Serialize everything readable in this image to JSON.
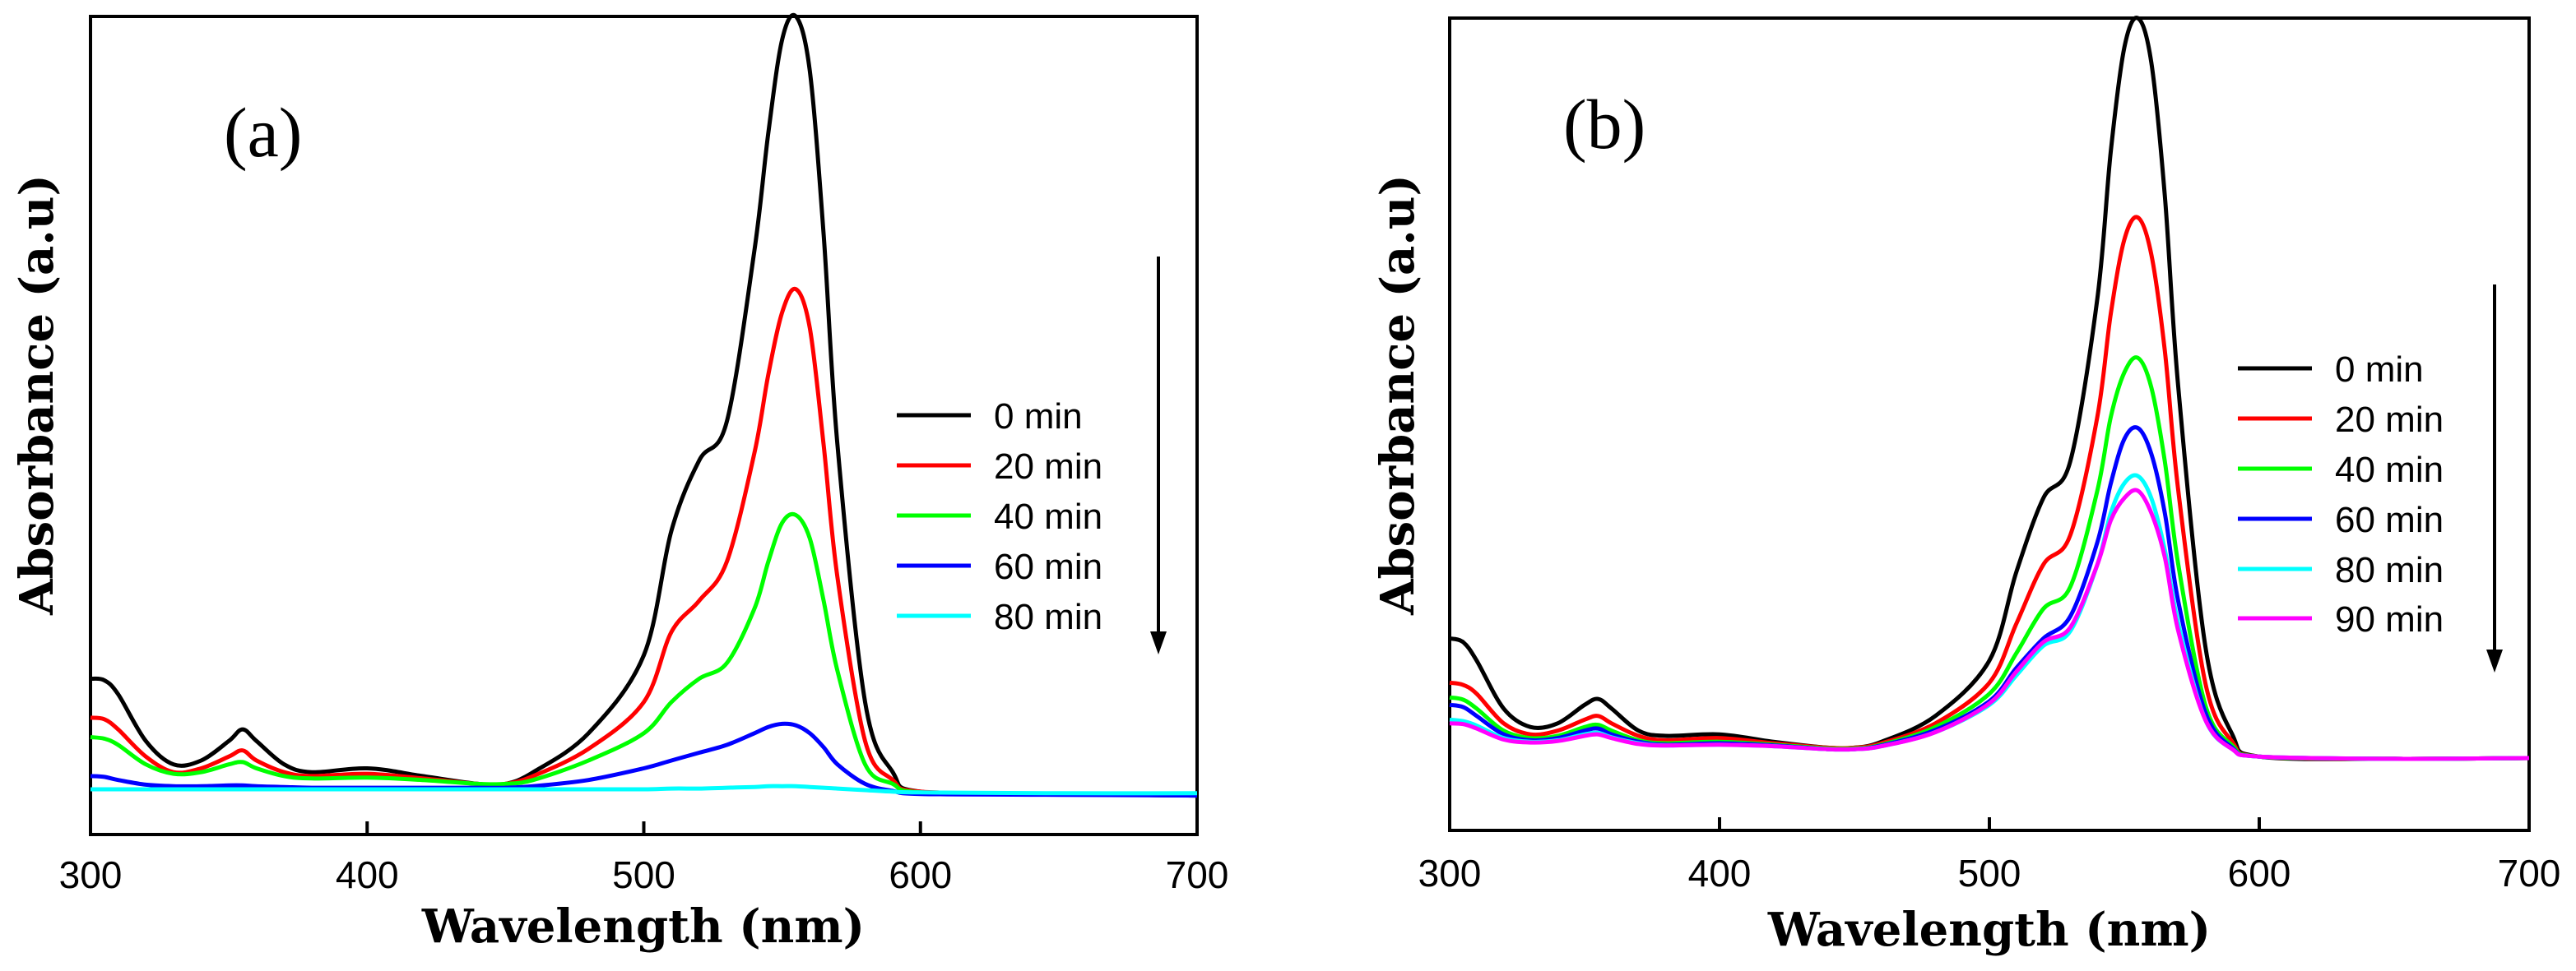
{
  "chart_data": [
    {
      "type": "line",
      "panel_label": "(a)",
      "xlabel": "Wavelength (nm)",
      "ylabel": "Absorbance (a.u)",
      "xlim": [
        300,
        700
      ],
      "ylim": [
        -0.05,
        1.0
      ],
      "xticks": [
        "300",
        "400",
        "500",
        "600",
        "700"
      ],
      "x": [
        300,
        305,
        310,
        320,
        330,
        340,
        350,
        355,
        360,
        370,
        380,
        400,
        420,
        440,
        450,
        460,
        480,
        500,
        510,
        520,
        530,
        540,
        545,
        550,
        555,
        560,
        565,
        570,
        580,
        590,
        600,
        650,
        700
      ],
      "series": [
        {
          "name": "0 min",
          "color": "#000000",
          "values": [
            0.15,
            0.148,
            0.13,
            0.07,
            0.04,
            0.045,
            0.07,
            0.085,
            0.07,
            0.04,
            0.03,
            0.035,
            0.025,
            0.015,
            0.015,
            0.03,
            0.08,
            0.18,
            0.34,
            0.43,
            0.48,
            0.7,
            0.85,
            0.97,
            1.0,
            0.93,
            0.72,
            0.45,
            0.12,
            0.03,
            0.005,
            0.002,
            0.0
          ]
        },
        {
          "name": "20 min",
          "color": "#ff0000",
          "values": [
            0.1,
            0.098,
            0.085,
            0.05,
            0.03,
            0.035,
            0.05,
            0.058,
            0.045,
            0.03,
            0.025,
            0.028,
            0.022,
            0.015,
            0.015,
            0.025,
            0.06,
            0.12,
            0.21,
            0.25,
            0.3,
            0.44,
            0.54,
            0.62,
            0.65,
            0.6,
            0.45,
            0.28,
            0.07,
            0.02,
            0.005,
            0.002,
            0.0
          ]
        },
        {
          "name": "40 min",
          "color": "#00ff00",
          "values": [
            0.075,
            0.073,
            0.065,
            0.04,
            0.028,
            0.03,
            0.04,
            0.043,
            0.035,
            0.025,
            0.022,
            0.023,
            0.02,
            0.015,
            0.015,
            0.02,
            0.045,
            0.08,
            0.12,
            0.15,
            0.17,
            0.24,
            0.3,
            0.35,
            0.36,
            0.33,
            0.25,
            0.16,
            0.04,
            0.015,
            0.004,
            0.002,
            0.0
          ]
        },
        {
          "name": "60 min",
          "color": "#0000ff",
          "values": [
            0.025,
            0.024,
            0.02,
            0.014,
            0.012,
            0.012,
            0.013,
            0.013,
            0.012,
            0.011,
            0.01,
            0.01,
            0.01,
            0.01,
            0.01,
            0.012,
            0.02,
            0.035,
            0.045,
            0.055,
            0.065,
            0.08,
            0.088,
            0.092,
            0.09,
            0.08,
            0.062,
            0.04,
            0.015,
            0.006,
            0.002,
            0.001,
            0.0
          ]
        },
        {
          "name": "80 min",
          "color": "#00ffff",
          "values": [
            0.008,
            0.008,
            0.008,
            0.008,
            0.008,
            0.008,
            0.008,
            0.008,
            0.008,
            0.008,
            0.008,
            0.008,
            0.008,
            0.008,
            0.008,
            0.008,
            0.008,
            0.008,
            0.009,
            0.009,
            0.01,
            0.011,
            0.012,
            0.012,
            0.012,
            0.011,
            0.01,
            0.009,
            0.007,
            0.005,
            0.004,
            0.003,
            0.003
          ]
        }
      ]
    },
    {
      "type": "line",
      "panel_label": "(b)",
      "xlabel": "Wavelength (nm)",
      "ylabel": "Absorbance (a.u)",
      "xlim": [
        300,
        700
      ],
      "ylim": [
        -0.1,
        1.0
      ],
      "xticks": [
        "300",
        "400",
        "500",
        "600",
        "700"
      ],
      "x": [
        300,
        305,
        310,
        320,
        330,
        340,
        350,
        355,
        360,
        370,
        380,
        400,
        420,
        440,
        450,
        460,
        480,
        500,
        510,
        520,
        530,
        540,
        545,
        550,
        555,
        560,
        565,
        570,
        580,
        590,
        600,
        650,
        700
      ],
      "series": [
        {
          "name": "0 min",
          "color": "#000000",
          "values": [
            0.16,
            0.155,
            0.13,
            0.065,
            0.04,
            0.045,
            0.07,
            0.078,
            0.065,
            0.035,
            0.028,
            0.03,
            0.02,
            0.012,
            0.012,
            0.02,
            0.055,
            0.13,
            0.25,
            0.35,
            0.4,
            0.62,
            0.82,
            0.96,
            1.0,
            0.94,
            0.76,
            0.5,
            0.15,
            0.03,
            0.0,
            -0.003,
            -0.002
          ]
        },
        {
          "name": "20 min",
          "color": "#ff0000",
          "values": [
            0.1,
            0.097,
            0.085,
            0.045,
            0.03,
            0.035,
            0.05,
            0.055,
            0.045,
            0.028,
            0.022,
            0.025,
            0.018,
            0.012,
            0.012,
            0.018,
            0.045,
            0.1,
            0.18,
            0.26,
            0.3,
            0.46,
            0.6,
            0.7,
            0.73,
            0.68,
            0.55,
            0.36,
            0.1,
            0.02,
            0.0,
            -0.003,
            -0.002
          ]
        },
        {
          "name": "40 min",
          "color": "#00ff00",
          "values": [
            0.08,
            0.077,
            0.065,
            0.035,
            0.025,
            0.028,
            0.04,
            0.043,
            0.035,
            0.022,
            0.018,
            0.02,
            0.016,
            0.011,
            0.011,
            0.016,
            0.04,
            0.085,
            0.14,
            0.2,
            0.23,
            0.36,
            0.46,
            0.52,
            0.54,
            0.5,
            0.4,
            0.26,
            0.07,
            0.015,
            0.0,
            -0.003,
            -0.002
          ]
        },
        {
          "name": "60 min",
          "color": "#0000ff",
          "values": [
            0.07,
            0.067,
            0.055,
            0.03,
            0.022,
            0.025,
            0.035,
            0.038,
            0.03,
            0.02,
            0.016,
            0.018,
            0.015,
            0.01,
            0.01,
            0.015,
            0.036,
            0.075,
            0.12,
            0.16,
            0.19,
            0.29,
            0.37,
            0.43,
            0.445,
            0.41,
            0.33,
            0.21,
            0.06,
            0.012,
            0.0,
            -0.003,
            -0.002
          ]
        },
        {
          "name": "80 min",
          "color": "#00ffff",
          "values": [
            0.05,
            0.048,
            0.042,
            0.025,
            0.02,
            0.022,
            0.03,
            0.032,
            0.026,
            0.018,
            0.015,
            0.016,
            0.014,
            0.01,
            0.01,
            0.014,
            0.033,
            0.07,
            0.11,
            0.15,
            0.17,
            0.26,
            0.33,
            0.37,
            0.38,
            0.35,
            0.28,
            0.18,
            0.05,
            0.01,
            0.0,
            -0.003,
            -0.002
          ]
        },
        {
          "name": "90 min",
          "color": "#ff00ff",
          "values": [
            0.045,
            0.044,
            0.038,
            0.023,
            0.019,
            0.021,
            0.028,
            0.03,
            0.025,
            0.017,
            0.015,
            0.016,
            0.014,
            0.01,
            0.01,
            0.014,
            0.033,
            0.072,
            0.115,
            0.155,
            0.175,
            0.26,
            0.32,
            0.35,
            0.36,
            0.33,
            0.27,
            0.17,
            0.05,
            0.01,
            0.0,
            -0.003,
            -0.002
          ]
        }
      ]
    }
  ]
}
